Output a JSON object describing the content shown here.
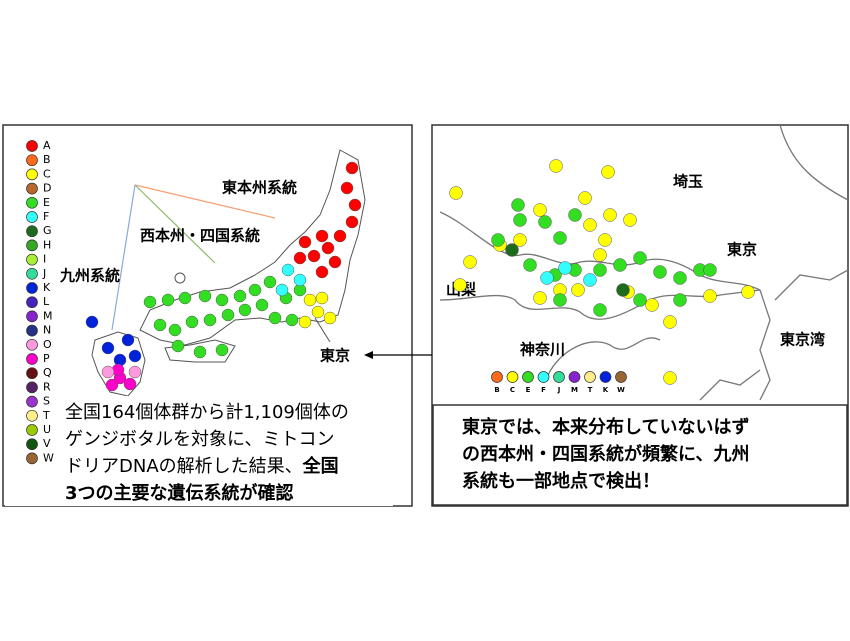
{
  "left_panel": {
    "legend": [
      {
        "label": "A",
        "color": "#ff0000"
      },
      {
        "label": "B",
        "color": "#ff6a1a"
      },
      {
        "label": "C",
        "color": "#ffff00"
      },
      {
        "label": "D",
        "color": "#b8682a"
      },
      {
        "label": "E",
        "color": "#33dd22"
      },
      {
        "label": "F",
        "color": "#33ffff"
      },
      {
        "label": "G",
        "color": "#1e6b1e"
      },
      {
        "label": "H",
        "color": "#33aa22"
      },
      {
        "label": "I",
        "color": "#aaee33"
      },
      {
        "label": "J",
        "color": "#33dd99"
      },
      {
        "label": "K",
        "color": "#0022dd"
      },
      {
        "label": "L",
        "color": "#4422bb"
      },
      {
        "label": "M",
        "color": "#8822cc"
      },
      {
        "label": "N",
        "color": "#223388"
      },
      {
        "label": "O",
        "color": "#ff99dd"
      },
      {
        "label": "P",
        "color": "#ff00cc"
      },
      {
        "label": "Q",
        "color": "#661111"
      },
      {
        "label": "R",
        "color": "#552266"
      },
      {
        "label": "S",
        "color": "#9933cc"
      },
      {
        "label": "T",
        "color": "#ffee88"
      },
      {
        "label": "U",
        "color": "#99cc00"
      },
      {
        "label": "V",
        "color": "#115511"
      },
      {
        "label": "W",
        "color": "#996633"
      }
    ],
    "labels": {
      "east": "東本州系統",
      "west": "西本州・四国系統",
      "kyushu": "九州系統",
      "tokyo": "東京"
    },
    "caption": [
      "全国164個体群から計1,109個体の",
      "ゲンジボタルを対象に、ミトコン",
      "ドリアDNAの解析した結果、",
      "全国",
      "3つの主要な遺伝系統が確認"
    ]
  },
  "right_panel": {
    "labels": {
      "saitama": "埼玉",
      "tokyo": "東京",
      "yamanashi": "山梨",
      "kanagawa": "神奈川",
      "bay": "東京湾"
    },
    "legend": [
      {
        "label": "B",
        "color": "#ff6a1a"
      },
      {
        "label": "C",
        "color": "#ffff00"
      },
      {
        "label": "E",
        "color": "#33dd22"
      },
      {
        "label": "F",
        "color": "#33ffff"
      },
      {
        "label": "J",
        "color": "#33dd99"
      },
      {
        "label": "M",
        "color": "#8822cc"
      },
      {
        "label": "T",
        "color": "#ffee88"
      },
      {
        "label": "K",
        "color": "#0022dd"
      },
      {
        "label": "W",
        "color": "#996633"
      }
    ],
    "caption": [
      "東京では、本来分布していないはず",
      "の西本州・四国系統が頻繁に、九州",
      "系統も一部地点で検出！"
    ]
  }
}
